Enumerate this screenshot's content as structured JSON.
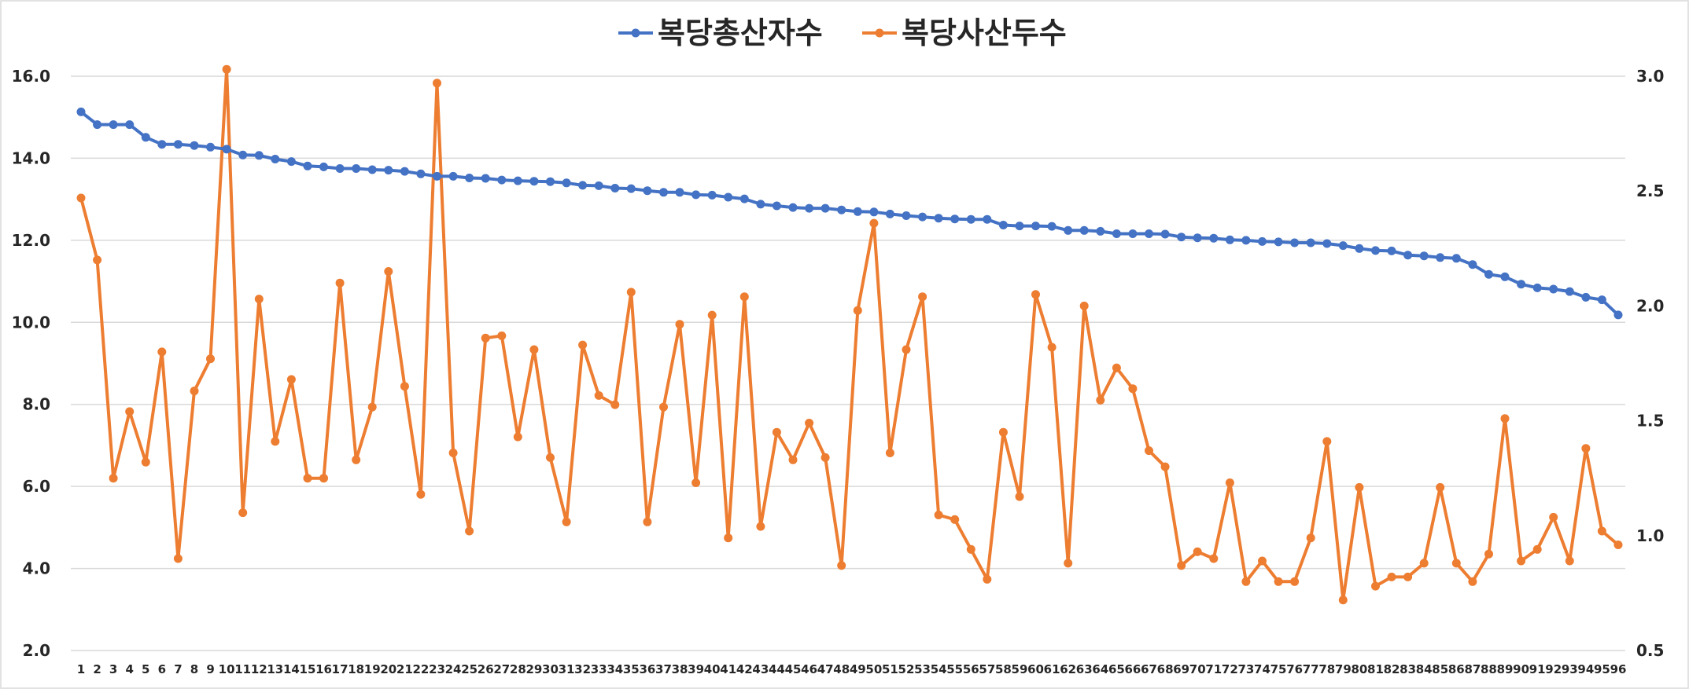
{
  "chart_data": {
    "type": "line",
    "title": "",
    "xlabel": "",
    "ylabel": "",
    "x": [
      1,
      2,
      3,
      4,
      5,
      6,
      7,
      8,
      9,
      10,
      11,
      12,
      13,
      14,
      15,
      16,
      17,
      18,
      19,
      20,
      21,
      22,
      23,
      24,
      25,
      26,
      27,
      28,
      29,
      30,
      31,
      32,
      33,
      34,
      35,
      36,
      37,
      38,
      39,
      40,
      41,
      42,
      43,
      44,
      45,
      46,
      47,
      48,
      49,
      50,
      51,
      52,
      53,
      54,
      55,
      56,
      57,
      58,
      59,
      60,
      61,
      62,
      63,
      64,
      65,
      66,
      67,
      68,
      69,
      70,
      71,
      72,
      73,
      74,
      75,
      76,
      77,
      78,
      79,
      80,
      81,
      82,
      83,
      84,
      85,
      86,
      87,
      88,
      89,
      90,
      91,
      92,
      93,
      94,
      95,
      96
    ],
    "y_left": {
      "min": 2.0,
      "max": 16.0,
      "step": 2.0,
      "ticks": [
        "2.0",
        "4.0",
        "6.0",
        "8.0",
        "10.0",
        "12.0",
        "14.0",
        "16.0"
      ]
    },
    "y_right": {
      "min": 0.5,
      "max": 3.0,
      "step": 0.5,
      "ticks": [
        "0.5",
        "1.0",
        "1.5",
        "2.0",
        "2.5",
        "3.0"
      ]
    },
    "grid": true,
    "legend_position": "top-center",
    "series": [
      {
        "name": "복당총산자수",
        "axis": "left",
        "color": "#4472c4",
        "values": [
          15.13,
          14.82,
          14.82,
          14.82,
          14.51,
          14.34,
          14.34,
          14.31,
          14.27,
          14.22,
          14.08,
          14.07,
          13.98,
          13.92,
          13.81,
          13.79,
          13.75,
          13.75,
          13.72,
          13.71,
          13.68,
          13.62,
          13.56,
          13.56,
          13.52,
          13.51,
          13.47,
          13.45,
          13.44,
          13.43,
          13.4,
          13.34,
          13.33,
          13.27,
          13.26,
          13.21,
          13.17,
          13.17,
          13.11,
          13.1,
          13.05,
          13.01,
          12.88,
          12.84,
          12.8,
          12.78,
          12.78,
          12.74,
          12.7,
          12.69,
          12.64,
          12.6,
          12.57,
          12.54,
          12.52,
          12.51,
          12.51,
          12.37,
          12.35,
          12.35,
          12.34,
          12.24,
          12.24,
          12.22,
          12.16,
          12.16,
          12.16,
          12.15,
          12.08,
          12.06,
          12.05,
          12.01,
          12.0,
          11.97,
          11.96,
          11.94,
          11.94,
          11.92,
          11.87,
          11.8,
          11.75,
          11.74,
          11.64,
          11.62,
          11.58,
          11.56,
          11.41,
          11.17,
          11.11,
          10.93,
          10.84,
          10.81,
          10.75,
          10.61,
          10.55,
          10.18
        ]
      },
      {
        "name": "복당사산두수",
        "axis": "right",
        "color": "#ed7d31",
        "values": [
          2.47,
          2.2,
          1.25,
          1.54,
          1.32,
          1.8,
          0.9,
          1.63,
          1.77,
          3.03,
          1.1,
          2.03,
          1.41,
          1.68,
          1.25,
          1.25,
          2.1,
          1.33,
          1.56,
          2.15,
          1.65,
          1.18,
          2.97,
          1.36,
          1.02,
          1.86,
          1.87,
          1.43,
          1.81,
          1.34,
          1.06,
          1.83,
          1.61,
          1.57,
          2.06,
          1.06,
          1.56,
          1.92,
          1.23,
          1.96,
          0.99,
          2.04,
          1.04,
          1.45,
          1.33,
          1.49,
          1.34,
          0.87,
          1.98,
          2.36,
          1.36,
          1.81,
          2.04,
          1.09,
          1.07,
          0.94,
          0.81,
          1.45,
          1.17,
          2.05,
          1.82,
          0.88,
          2.0,
          1.59,
          1.73,
          1.64,
          1.37,
          1.3,
          0.87,
          0.93,
          0.9,
          1.23,
          0.8,
          0.89,
          0.8,
          0.8,
          0.99,
          1.41,
          0.72,
          1.21,
          0.78,
          0.82,
          0.82,
          0.88,
          1.21,
          0.88,
          0.8,
          0.92,
          1.51,
          0.89,
          0.94,
          1.08,
          0.89,
          1.38,
          1.02,
          0.96
        ]
      }
    ]
  }
}
